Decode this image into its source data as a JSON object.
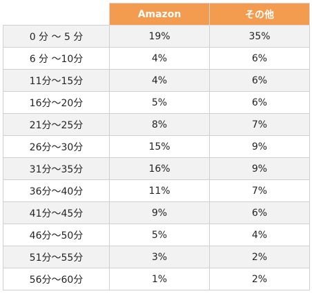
{
  "chart_data": {
    "type": "table",
    "columns": [
      "",
      "Amazon",
      "その他"
    ],
    "rows": [
      {
        "label": "0 分 ～ 5 分",
        "amazon": "19%",
        "other": "35%"
      },
      {
        "label": "6 分 ～10分",
        "amazon": "4%",
        "other": "6%"
      },
      {
        "label": "11分～15分",
        "amazon": "4%",
        "other": "6%"
      },
      {
        "label": "16分～20分",
        "amazon": "5%",
        "other": "6%"
      },
      {
        "label": "21分～25分",
        "amazon": "8%",
        "other": "7%"
      },
      {
        "label": "26分～30分",
        "amazon": "15%",
        "other": "9%"
      },
      {
        "label": "31分～35分",
        "amazon": "16%",
        "other": "9%"
      },
      {
        "label": "36分～40分",
        "amazon": "11%",
        "other": "7%"
      },
      {
        "label": "41分～45分",
        "amazon": "9%",
        "other": "6%"
      },
      {
        "label": "46分～50分",
        "amazon": "5%",
        "other": "4%"
      },
      {
        "label": "51分～55分",
        "amazon": "3%",
        "other": "2%"
      },
      {
        "label": "56分～60分",
        "amazon": "1%",
        "other": "2%"
      }
    ],
    "colors": {
      "header": "#f39b4f",
      "row_alt": "#f2f2f2",
      "border": "#cfcfcf"
    }
  }
}
